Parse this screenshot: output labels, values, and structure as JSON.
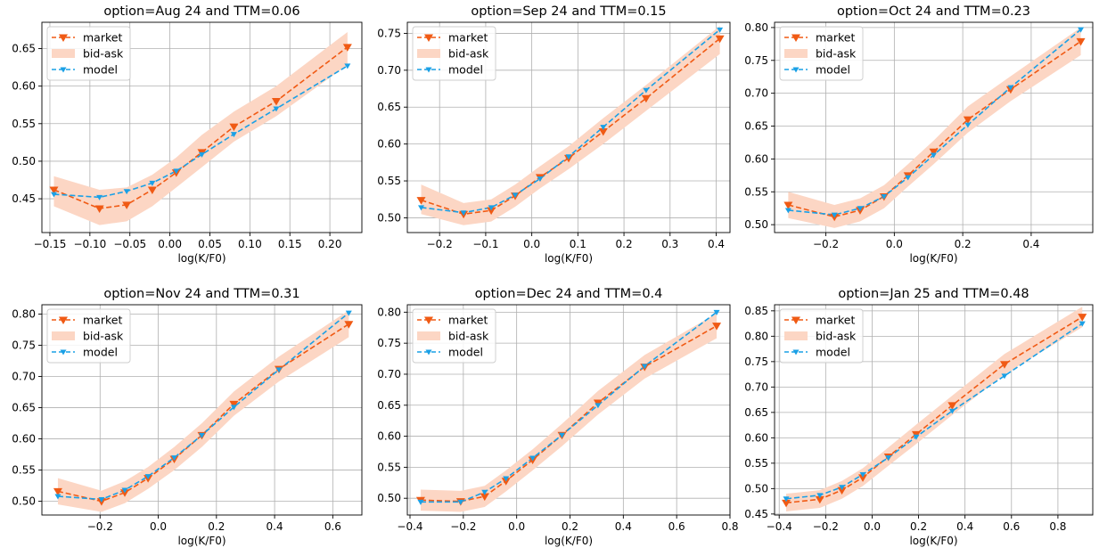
{
  "colors": {
    "market": "#f05a14",
    "model": "#1aa0e6",
    "band": "#fcd6c4",
    "grid": "#b0b0b0"
  },
  "legend": [
    "market",
    "bid-ask",
    "model"
  ],
  "chart_data": [
    {
      "type": "line",
      "title": "option=Aug 24 and TTM=0.06",
      "xlabel": "log(K/F0)",
      "legend_position": "upper-left",
      "grid": true,
      "xlim": [
        -0.16,
        0.24
      ],
      "ylim": [
        0.405,
        0.685
      ],
      "xticks": [
        -0.15,
        -0.1,
        -0.05,
        0.0,
        0.05,
        0.1,
        0.15,
        0.2
      ],
      "xtick_labels": [
        "−0.15",
        "−0.10",
        "−0.05",
        "0.00",
        "0.05",
        "0.10",
        "0.15",
        "0.20"
      ],
      "yticks": [
        0.45,
        0.5,
        0.55,
        0.6,
        0.65
      ],
      "ytick_labels": [
        "0.45",
        "0.50",
        "0.55",
        "0.60",
        "0.65"
      ],
      "x": [
        -0.145,
        -0.088,
        -0.054,
        -0.022,
        0.008,
        0.04,
        0.08,
        0.133,
        0.222
      ],
      "series": [
        {
          "name": "market",
          "values": [
            0.462,
            0.437,
            0.442,
            0.462,
            0.485,
            0.512,
            0.546,
            0.58,
            0.652
          ]
        },
        {
          "name": "bid-ask",
          "lower": [
            0.44,
            0.415,
            0.42,
            0.44,
            0.465,
            0.492,
            0.526,
            0.56,
            0.628
          ],
          "upper": [
            0.48,
            0.462,
            0.465,
            0.482,
            0.505,
            0.535,
            0.566,
            0.6,
            0.672
          ]
        },
        {
          "name": "model",
          "values": [
            0.456,
            0.452,
            0.46,
            0.471,
            0.487,
            0.509,
            0.536,
            0.57,
            0.627
          ]
        }
      ]
    },
    {
      "type": "line",
      "title": "option=Sep 24 and TTM=0.15",
      "xlabel": "log(K/F0)",
      "legend_position": "upper-left",
      "grid": true,
      "xlim": [
        -0.27,
        0.43
      ],
      "ylim": [
        0.48,
        0.765
      ],
      "xticks": [
        -0.2,
        -0.1,
        0.0,
        0.1,
        0.2,
        0.3,
        0.4
      ],
      "xtick_labels": [
        "−0.2",
        "−0.1",
        "0.0",
        "0.1",
        "0.2",
        "0.3",
        "0.4"
      ],
      "yticks": [
        0.5,
        0.55,
        0.6,
        0.65,
        0.7,
        0.75
      ],
      "ytick_labels": [
        "0.50",
        "0.55",
        "0.60",
        "0.65",
        "0.70",
        "0.75"
      ],
      "x": [
        -0.24,
        -0.148,
        -0.088,
        -0.036,
        0.018,
        0.08,
        0.155,
        0.248,
        0.408
      ],
      "series": [
        {
          "name": "market",
          "values": [
            0.524,
            0.505,
            0.51,
            0.53,
            0.555,
            0.581,
            0.617,
            0.662,
            0.743
          ]
        },
        {
          "name": "bid-ask",
          "lower": [
            0.505,
            0.49,
            0.495,
            0.515,
            0.54,
            0.566,
            0.6,
            0.645,
            0.722
          ],
          "upper": [
            0.545,
            0.52,
            0.525,
            0.545,
            0.57,
            0.597,
            0.635,
            0.68,
            0.76
          ]
        },
        {
          "name": "model",
          "values": [
            0.514,
            0.507,
            0.514,
            0.531,
            0.553,
            0.583,
            0.623,
            0.673,
            0.755
          ]
        }
      ]
    },
    {
      "type": "line",
      "title": "option=Oct 24 and TTM=0.23",
      "xlabel": "log(K/F0)",
      "legend_position": "upper-left",
      "grid": true,
      "xlim": [
        -0.35,
        0.58
      ],
      "ylim": [
        0.488,
        0.808
      ],
      "xticks": [
        -0.2,
        0.0,
        0.2,
        0.4
      ],
      "xtick_labels": [
        "−0.2",
        "0.0",
        "0.2",
        "0.4"
      ],
      "yticks": [
        0.5,
        0.55,
        0.6,
        0.65,
        0.7,
        0.75,
        0.8
      ],
      "ytick_labels": [
        "0.50",
        "0.55",
        "0.60",
        "0.65",
        "0.70",
        "0.75",
        "0.80"
      ],
      "x": [
        -0.31,
        -0.175,
        -0.1,
        -0.03,
        0.04,
        0.115,
        0.215,
        0.34,
        0.545
      ],
      "series": [
        {
          "name": "market",
          "values": [
            0.53,
            0.512,
            0.522,
            0.543,
            0.575,
            0.611,
            0.66,
            0.706,
            0.779
          ]
        },
        {
          "name": "bid-ask",
          "lower": [
            0.51,
            0.495,
            0.505,
            0.525,
            0.558,
            0.592,
            0.64,
            0.688,
            0.758
          ],
          "upper": [
            0.55,
            0.53,
            0.54,
            0.56,
            0.592,
            0.628,
            0.68,
            0.726,
            0.8
          ]
        },
        {
          "name": "model",
          "values": [
            0.522,
            0.515,
            0.525,
            0.543,
            0.572,
            0.606,
            0.652,
            0.709,
            0.797
          ]
        }
      ]
    },
    {
      "type": "line",
      "title": "option=Nov 24 and TTM=0.31",
      "xlabel": "log(K/F0)",
      "legend_position": "upper-left",
      "grid": true,
      "xlim": [
        -0.4,
        0.7
      ],
      "ylim": [
        0.478,
        0.815
      ],
      "xticks": [
        -0.2,
        0.0,
        0.2,
        0.4,
        0.6
      ],
      "xtick_labels": [
        "−0.2",
        "0.0",
        "0.2",
        "0.4",
        "0.6"
      ],
      "yticks": [
        0.5,
        0.55,
        0.6,
        0.65,
        0.7,
        0.75,
        0.8
      ],
      "ytick_labels": [
        "0.50",
        "0.55",
        "0.60",
        "0.65",
        "0.70",
        "0.75",
        "0.80"
      ],
      "x": [
        -0.345,
        -0.195,
        -0.115,
        -0.035,
        0.055,
        0.15,
        0.26,
        0.415,
        0.655
      ],
      "series": [
        {
          "name": "market",
          "values": [
            0.516,
            0.5,
            0.514,
            0.537,
            0.568,
            0.606,
            0.656,
            0.712,
            0.784
          ]
        },
        {
          "name": "bid-ask",
          "lower": [
            0.495,
            0.483,
            0.497,
            0.52,
            0.55,
            0.587,
            0.637,
            0.692,
            0.763
          ],
          "upper": [
            0.537,
            0.517,
            0.532,
            0.555,
            0.587,
            0.625,
            0.676,
            0.732,
            0.806
          ]
        },
        {
          "name": "model",
          "values": [
            0.508,
            0.503,
            0.518,
            0.54,
            0.57,
            0.606,
            0.651,
            0.711,
            0.802
          ]
        }
      ]
    },
    {
      "type": "line",
      "title": "option=Dec 24 and TTM=0.4",
      "xlabel": "log(K/F0)",
      "legend_position": "upper-left",
      "grid": true,
      "xlim": [
        -0.41,
        0.8
      ],
      "ylim": [
        0.473,
        0.812
      ],
      "xticks": [
        -0.4,
        -0.2,
        0.0,
        0.2,
        0.4,
        0.6,
        0.8
      ],
      "xtick_labels": [
        "−0.4",
        "−0.2",
        "0.0",
        "0.2",
        "0.4",
        "0.6",
        "0.8"
      ],
      "yticks": [
        0.5,
        0.55,
        0.6,
        0.65,
        0.7,
        0.75,
        0.8
      ],
      "ytick_labels": [
        "0.50",
        "0.55",
        "0.60",
        "0.65",
        "0.70",
        "0.75",
        "0.80"
      ],
      "x": [
        -0.36,
        -0.21,
        -0.12,
        -0.04,
        0.06,
        0.17,
        0.305,
        0.48,
        0.75
      ],
      "series": [
        {
          "name": "market",
          "values": [
            0.497,
            0.495,
            0.503,
            0.528,
            0.562,
            0.602,
            0.654,
            0.712,
            0.778
          ]
        },
        {
          "name": "bid-ask",
          "lower": [
            0.48,
            0.478,
            0.486,
            0.511,
            0.545,
            0.584,
            0.635,
            0.693,
            0.758
          ],
          "upper": [
            0.514,
            0.512,
            0.52,
            0.545,
            0.579,
            0.62,
            0.673,
            0.731,
            0.798
          ]
        },
        {
          "name": "model",
          "values": [
            0.494,
            0.494,
            0.51,
            0.532,
            0.565,
            0.602,
            0.65,
            0.713,
            0.8
          ]
        }
      ]
    },
    {
      "type": "line",
      "title": "option=Jan 25 and TTM=0.48",
      "xlabel": "log(K/F0)",
      "legend_position": "upper-left",
      "grid": true,
      "xlim": [
        -0.42,
        0.95
      ],
      "ylim": [
        0.448,
        0.862
      ],
      "xticks": [
        -0.4,
        -0.2,
        0.0,
        0.2,
        0.4,
        0.6,
        0.8
      ],
      "xtick_labels": [
        "−0.4",
        "−0.2",
        "0.0",
        "0.2",
        "0.4",
        "0.6",
        "0.8"
      ],
      "yticks": [
        0.45,
        0.5,
        0.55,
        0.6,
        0.65,
        0.7,
        0.75,
        0.8,
        0.85
      ],
      "ytick_labels": [
        "0.45",
        "0.50",
        "0.55",
        "0.60",
        "0.65",
        "0.70",
        "0.75",
        "0.80",
        "0.85"
      ],
      "x": [
        -0.37,
        -0.225,
        -0.13,
        -0.04,
        0.07,
        0.19,
        0.345,
        0.57,
        0.905
      ],
      "series": [
        {
          "name": "market",
          "values": [
            0.472,
            0.479,
            0.497,
            0.522,
            0.563,
            0.607,
            0.664,
            0.745,
            0.838
          ]
        },
        {
          "name": "bid-ask",
          "lower": [
            0.455,
            0.462,
            0.48,
            0.505,
            0.545,
            0.588,
            0.645,
            0.725,
            0.818
          ],
          "upper": [
            0.49,
            0.497,
            0.515,
            0.54,
            0.581,
            0.626,
            0.683,
            0.765,
            0.858
          ]
        },
        {
          "name": "model",
          "values": [
            0.48,
            0.487,
            0.503,
            0.528,
            0.561,
            0.602,
            0.653,
            0.722,
            0.825
          ]
        }
      ]
    }
  ]
}
